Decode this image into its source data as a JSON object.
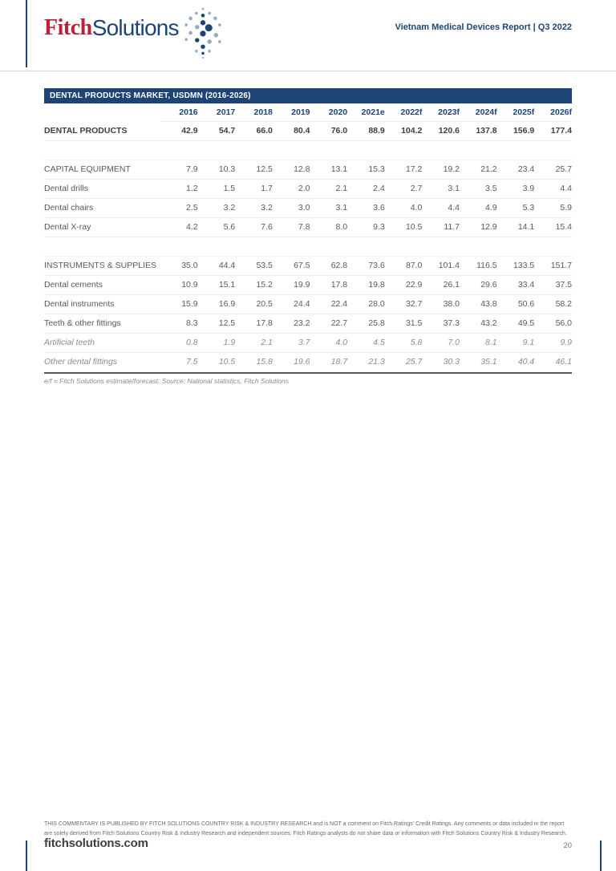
{
  "header": {
    "logo": {
      "word1": "Fitch",
      "word2": "Solutions"
    },
    "report_title": "Vietnam Medical Devices Report | Q3 2022"
  },
  "table": {
    "title": "DENTAL PRODUCTS MARKET, USDMN (2016-2026)",
    "columns": [
      "2016",
      "2017",
      "2018",
      "2019",
      "2020",
      "2021e",
      "2022f",
      "2023f",
      "2024f",
      "2025f",
      "2026f"
    ],
    "rows": [
      {
        "label": "DENTAL PRODUCTS",
        "style": "bold",
        "values": [
          "42.9",
          "54.7",
          "66.0",
          "80.4",
          "76.0",
          "88.9",
          "104.2",
          "120.6",
          "137.8",
          "156.9",
          "177.4"
        ]
      },
      {
        "style": "spacer"
      },
      {
        "label": "CAPITAL EQUIPMENT",
        "style": "section",
        "values": [
          "7.9",
          "10.3",
          "12.5",
          "12.8",
          "13.1",
          "15.3",
          "17.2",
          "19.2",
          "21.2",
          "23.4",
          "25.7"
        ]
      },
      {
        "label": "Dental drills",
        "style": "normal",
        "values": [
          "1.2",
          "1.5",
          "1.7",
          "2.0",
          "2.1",
          "2.4",
          "2.7",
          "3.1",
          "3.5",
          "3.9",
          "4.4"
        ]
      },
      {
        "label": "Dental chairs",
        "style": "normal",
        "values": [
          "2.5",
          "3.2",
          "3.2",
          "3.0",
          "3.1",
          "3.6",
          "4.0",
          "4.4",
          "4.9",
          "5.3",
          "5.9"
        ]
      },
      {
        "label": "Dental X-ray",
        "style": "normal",
        "values": [
          "4.2",
          "5.6",
          "7.6",
          "7.8",
          "8.0",
          "9.3",
          "10.5",
          "11.7",
          "12.9",
          "14.1",
          "15.4"
        ]
      },
      {
        "style": "spacer"
      },
      {
        "label": "INSTRUMENTS & SUPPLIES",
        "style": "section",
        "values": [
          "35.0",
          "44.4",
          "53.5",
          "67.5",
          "62.8",
          "73.6",
          "87.0",
          "101.4",
          "116.5",
          "133.5",
          "151.7"
        ]
      },
      {
        "label": "Dental cements",
        "style": "normal",
        "values": [
          "10.9",
          "15.1",
          "15.2",
          "19.9",
          "17.8",
          "19.8",
          "22.9",
          "26.1",
          "29.6",
          "33.4",
          "37.5"
        ]
      },
      {
        "label": "Dental instruments",
        "style": "normal",
        "values": [
          "15.9",
          "16.9",
          "20.5",
          "24.4",
          "22.4",
          "28.0",
          "32.7",
          "38.0",
          "43.8",
          "50.6",
          "58.2"
        ]
      },
      {
        "label": "Teeth & other fittings",
        "style": "normal",
        "values": [
          "8.3",
          "12.5",
          "17.8",
          "23.2",
          "22.7",
          "25.8",
          "31.5",
          "37.3",
          "43.2",
          "49.5",
          "56.0"
        ]
      },
      {
        "label": "Artificial teeth",
        "style": "italic",
        "values": [
          "0.8",
          "1.9",
          "2.1",
          "3.7",
          "4.0",
          "4.5",
          "5.8",
          "7.0",
          "8.1",
          "9.1",
          "9.9"
        ]
      },
      {
        "label": "Other dental fittings",
        "style": "italic",
        "values": [
          "7.5",
          "10.5",
          "15.8",
          "19.6",
          "18.7",
          "21.3",
          "25.7",
          "30.3",
          "35.1",
          "40.4",
          "46.1"
        ]
      }
    ],
    "footnote": "e/f = Fitch Solutions estimate/forecast. Source: National statistics, Fitch Solutions"
  },
  "footer": {
    "disclaimer": "THIS COMMENTARY IS PUBLISHED BY FITCH SOLUTIONS COUNTRY RISK & INDUSTRY RESEARCH and is NOT a comment on Fitch Ratings' Credit Ratings. Any comments or data included in the report are solely derived from Fitch Solutions Country Risk & Industry Research and independent sources. Fitch Ratings analysts do not share data or information with Fitch Solutions Country Risk & Industry Research.",
    "website": "fitchsolutions.com",
    "page_number": "20"
  },
  "colors": {
    "navy": "#1e4476",
    "fitch_red": "#b92039",
    "dot_light": "#93aac8",
    "body_text": "#595959"
  }
}
